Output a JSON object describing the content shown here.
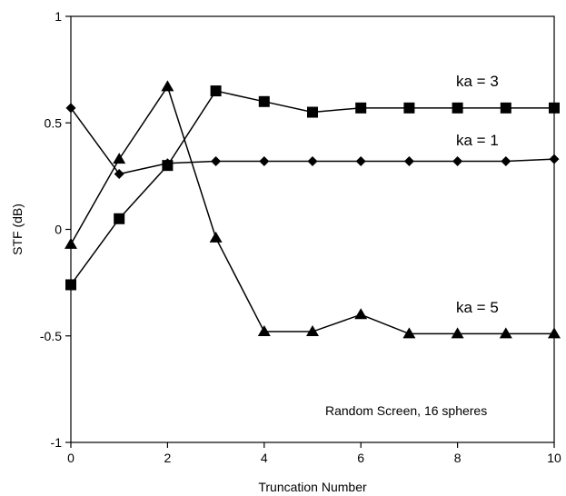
{
  "chart_data": {
    "type": "line",
    "xlabel": "Truncation Number",
    "ylabel": "STF (dB)",
    "xlim": [
      0,
      10
    ],
    "ylim": [
      -1,
      1
    ],
    "x_ticks": [
      "0",
      "2",
      "4",
      "6",
      "8",
      "10"
    ],
    "y_ticks": [
      "-1",
      "-0.5",
      "0",
      "0.5",
      "1"
    ],
    "grid": false,
    "annotation": "Random Screen, 16 spheres",
    "series": [
      {
        "label": "ka = 1",
        "marker": "diamond",
        "x": [
          0,
          1,
          2,
          3,
          4,
          5,
          6,
          7,
          8,
          9,
          10
        ],
        "y": [
          0.57,
          0.26,
          0.31,
          0.32,
          0.32,
          0.32,
          0.32,
          0.32,
          0.32,
          0.32,
          0.33
        ]
      },
      {
        "label": "ka = 3",
        "marker": "square",
        "x": [
          0,
          1,
          2,
          3,
          4,
          5,
          6,
          7,
          8,
          9,
          10
        ],
        "y": [
          -0.26,
          0.05,
          0.3,
          0.65,
          0.6,
          0.55,
          0.57,
          0.57,
          0.57,
          0.57,
          0.57
        ]
      },
      {
        "label": "ka = 5",
        "marker": "triangle",
        "x": [
          0,
          1,
          2,
          3,
          4,
          5,
          6,
          7,
          8,
          9,
          10
        ],
        "y": [
          -0.07,
          0.33,
          0.67,
          -0.04,
          -0.48,
          -0.48,
          -0.4,
          -0.49,
          -0.49,
          -0.49,
          -0.49
        ]
      }
    ]
  }
}
